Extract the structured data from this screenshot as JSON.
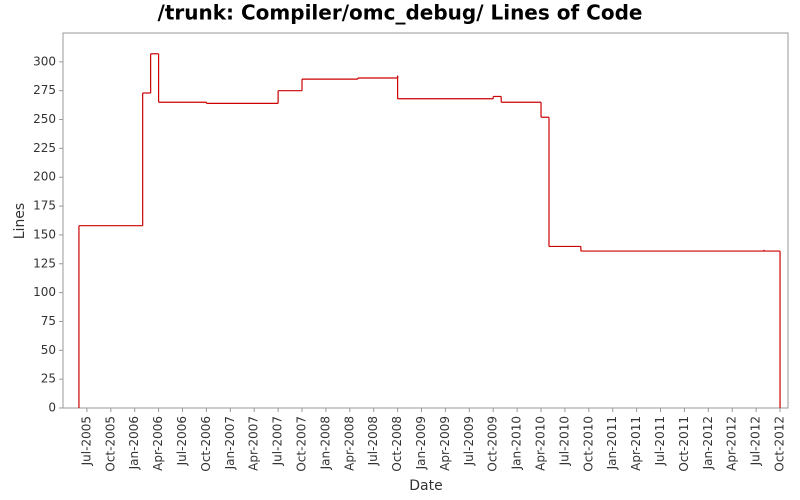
{
  "chart_data": {
    "type": "step",
    "title": "/trunk: Compiler/omc_debug/ Lines of Code",
    "x_label": "Date",
    "y_label": "Lines",
    "series": [
      {
        "name": "Lines",
        "color": "#cc0000",
        "x": [
          "Jun-2005",
          "Jun-2005",
          "Feb-2006",
          "Feb-2006",
          "Feb-2006",
          "Mar-2006",
          "Mar-2006",
          "Mar-2006",
          "Apr-2006",
          "Oct-2006",
          "Jul-2007",
          "Oct-2007",
          "May-2008",
          "Oct-2008",
          "Oct-2008",
          "Oct-2009",
          "Nov-2009",
          "Apr-2010",
          "Apr-2010",
          "May-2010",
          "Sep-2010",
          "Aug-2012",
          "Aug-2012",
          "Oct-2012"
        ],
        "values": [
          0,
          158,
          165,
          270,
          273,
          280,
          305,
          307,
          265,
          264,
          275,
          285,
          286,
          288,
          268,
          270,
          265,
          262,
          252,
          140,
          136,
          137,
          136,
          0
        ]
      }
    ],
    "xlim": [
      "Apr-2005",
      "Nov-2012"
    ],
    "xticks": [
      "Jul-2005",
      "Oct-2005",
      "Jan-2006",
      "Apr-2006",
      "Jul-2006",
      "Oct-2006",
      "Jan-2007",
      "Apr-2007",
      "Jul-2007",
      "Oct-2007",
      "Jan-2008",
      "Apr-2008",
      "Jul-2008",
      "Oct-2008",
      "Jan-2009",
      "Apr-2009",
      "Jul-2009",
      "Oct-2009",
      "Jan-2010",
      "Apr-2010",
      "Jul-2010",
      "Oct-2010",
      "Jan-2011",
      "Apr-2011",
      "Jul-2011",
      "Oct-2011",
      "Jan-2012",
      "Apr-2012",
      "Jul-2012",
      "Oct-2012"
    ],
    "ylim": [
      0,
      325
    ],
    "yticks": [
      0,
      25,
      50,
      75,
      100,
      125,
      150,
      175,
      200,
      225,
      250,
      275,
      300
    ],
    "grid": false
  }
}
